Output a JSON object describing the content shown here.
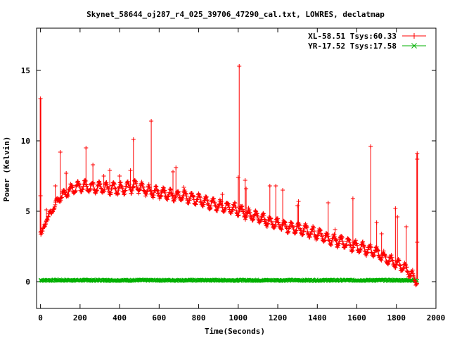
{
  "chart_data": {
    "type": "line",
    "title": "Skynet_58644_oj287_r4_025_39706_47290_cal.txt, LOWRES, declatmap",
    "xlabel": "Time(Seconds)",
    "ylabel": "Power (Kelvin)",
    "xlim": [
      -20,
      2000
    ],
    "ylim": [
      -1.9,
      18
    ],
    "xticks": [
      "0",
      "200",
      "400",
      "600",
      "800",
      "1000",
      "1200",
      "1400",
      "1600",
      "1800",
      "2000"
    ],
    "yticks": [
      "0",
      "5",
      "10",
      "15"
    ],
    "legend_position": "top-right",
    "series": [
      {
        "name": "XL-58.51 Tsys:60.33",
        "color": "#ff0000",
        "marker": "plus",
        "trend": [
          [
            0,
            3.4
          ],
          [
            5,
            3.5
          ],
          [
            20,
            4.0
          ],
          [
            40,
            4.6
          ],
          [
            60,
            5.1
          ],
          [
            80,
            5.6
          ],
          [
            100,
            6.0
          ],
          [
            130,
            6.3
          ],
          [
            160,
            6.6
          ],
          [
            200,
            6.8
          ],
          [
            250,
            6.7
          ],
          [
            300,
            6.7
          ],
          [
            350,
            6.6
          ],
          [
            400,
            6.6
          ],
          [
            450,
            6.7
          ],
          [
            480,
            6.8
          ],
          [
            520,
            6.6
          ],
          [
            560,
            6.4
          ],
          [
            600,
            6.3
          ],
          [
            650,
            6.2
          ],
          [
            700,
            6.1
          ],
          [
            750,
            6.0
          ],
          [
            800,
            5.8
          ],
          [
            850,
            5.6
          ],
          [
            900,
            5.4
          ],
          [
            950,
            5.3
          ],
          [
            1000,
            5.1
          ],
          [
            1050,
            4.8
          ],
          [
            1100,
            4.6
          ],
          [
            1150,
            4.3
          ],
          [
            1200,
            4.1
          ],
          [
            1250,
            3.9
          ],
          [
            1300,
            3.8
          ],
          [
            1350,
            3.6
          ],
          [
            1400,
            3.4
          ],
          [
            1450,
            3.1
          ],
          [
            1500,
            2.9
          ],
          [
            1550,
            2.7
          ],
          [
            1600,
            2.5
          ],
          [
            1650,
            2.3
          ],
          [
            1700,
            2.1
          ],
          [
            1750,
            1.6
          ],
          [
            1800,
            1.3
          ],
          [
            1850,
            0.9
          ],
          [
            1880,
            0.4
          ],
          [
            1895,
            0.2
          ],
          [
            1905,
            0.2
          ]
        ],
        "ripple_amplitude": 0.35,
        "ripple_period": 36,
        "spikes": [
          [
            0,
            13.0
          ],
          [
            0,
            6.1
          ],
          [
            30,
            5.1
          ],
          [
            75,
            6.8
          ],
          [
            100,
            9.2
          ],
          [
            130,
            7.7
          ],
          [
            230,
            9.5
          ],
          [
            265,
            8.3
          ],
          [
            320,
            7.5
          ],
          [
            350,
            7.9
          ],
          [
            400,
            7.5
          ],
          [
            455,
            7.9
          ],
          [
            470,
            10.1
          ],
          [
            560,
            11.4
          ],
          [
            670,
            7.8
          ],
          [
            685,
            8.1
          ],
          [
            725,
            6.7
          ],
          [
            920,
            6.2
          ],
          [
            1000,
            7.4
          ],
          [
            1005,
            15.3
          ],
          [
            1035,
            7.2
          ],
          [
            1040,
            6.6
          ],
          [
            1160,
            6.8
          ],
          [
            1190,
            6.8
          ],
          [
            1225,
            6.5
          ],
          [
            1300,
            5.4
          ],
          [
            1305,
            5.7
          ],
          [
            1455,
            5.6
          ],
          [
            1490,
            3.7
          ],
          [
            1515,
            3.1
          ],
          [
            1580,
            5.9
          ],
          [
            1670,
            9.6
          ],
          [
            1700,
            4.2
          ],
          [
            1725,
            3.4
          ],
          [
            1795,
            5.2
          ],
          [
            1805,
            4.6
          ],
          [
            1850,
            3.9
          ],
          [
            1905,
            2.8
          ],
          [
            1905,
            9.1
          ],
          [
            1905,
            8.7
          ]
        ]
      },
      {
        "name": "YR-17.52 Tsys:17.58",
        "color": "#00b000",
        "marker": "cross",
        "level": 0.1,
        "noise": 0.05
      }
    ]
  }
}
